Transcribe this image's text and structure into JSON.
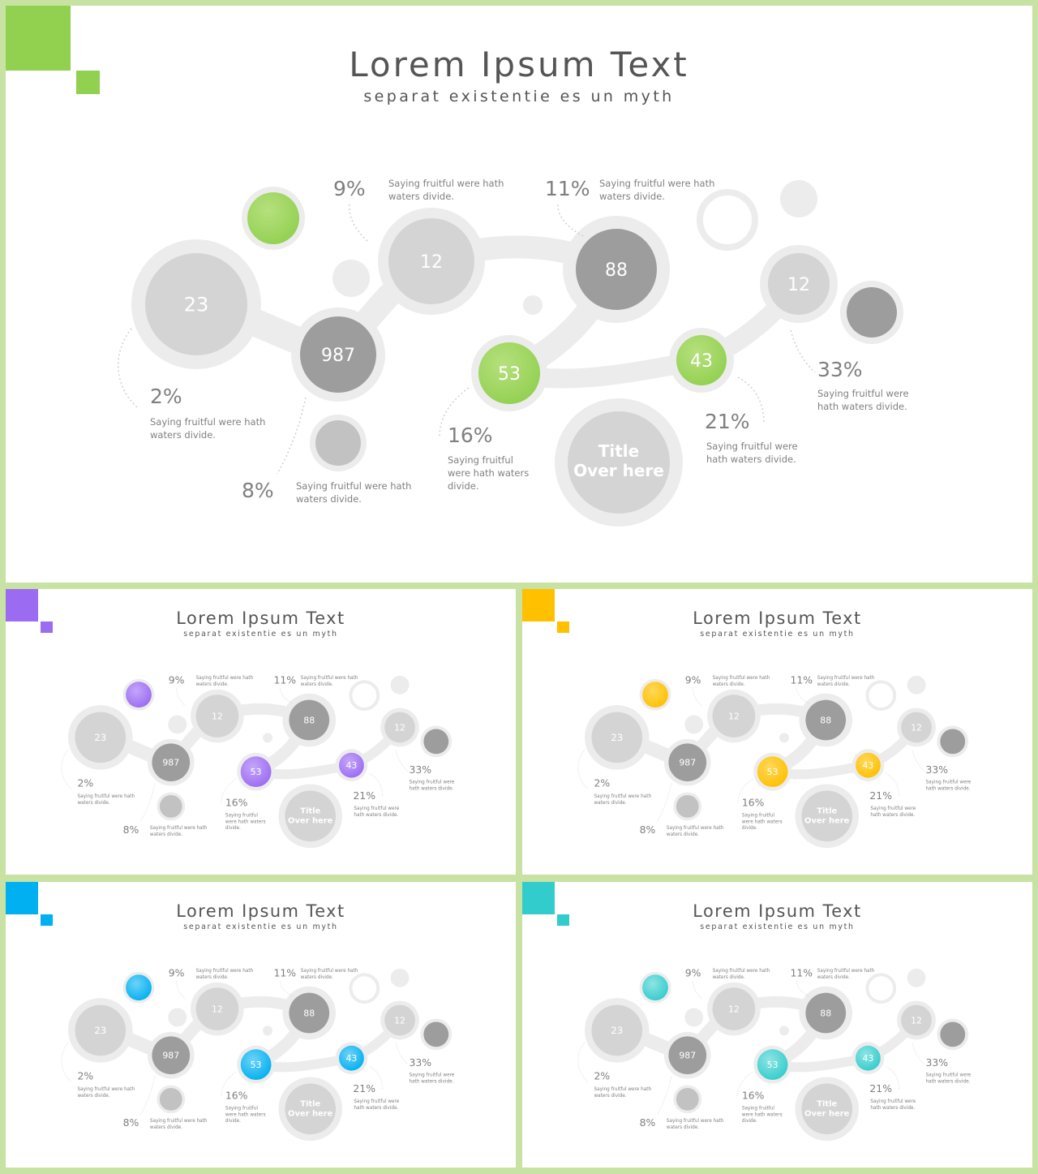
{
  "slides": [
    {
      "id": "main",
      "accent": "#92d050",
      "accent_light": "#b6e07e"
    },
    {
      "id": "purple",
      "accent": "#9b6bf2",
      "accent_light": "#c4a6f8"
    },
    {
      "id": "yellow",
      "accent": "#ffc000",
      "accent_light": "#ffd85a"
    },
    {
      "id": "blue",
      "accent": "#00b0f0",
      "accent_light": "#6dd2f7"
    },
    {
      "id": "teal",
      "accent": "#33cccc",
      "accent_light": "#8fe3e3"
    }
  ],
  "title": "Lorem Ipsum Text",
  "subtitle": "separat existentie es un myth",
  "nodes": {
    "big": "23",
    "n987": "987",
    "n12a": "12",
    "n88": "88",
    "n53": "53",
    "n43": "43",
    "n12b": "12",
    "center_line1": "Title",
    "center_line2": "Over here"
  },
  "callouts": {
    "p9": {
      "pct": "9%",
      "line1": "Saying fruitful were hath",
      "line2": "waters divide."
    },
    "p11": {
      "pct": "11%",
      "line1": "Saying fruitful were hath",
      "line2": "waters divide."
    },
    "p2": {
      "pct": "2%",
      "line1": "Saying fruitful were hath",
      "line2": "waters divide."
    },
    "p8": {
      "pct": "8%",
      "line1": "Saying fruitful were hath",
      "line2": "waters divide."
    },
    "p16": {
      "pct": "16%",
      "line1": "Saying fruitful",
      "line2": "were hath waters",
      "line3": "divide."
    },
    "p21": {
      "pct": "21%",
      "line1": "Saying fruitful were",
      "line2": "hath waters divide."
    },
    "p33": {
      "pct": "33%",
      "line1": "Saying fruitful were",
      "line2": "hath waters divide."
    }
  },
  "palette": {
    "outer_ring": "#ececec",
    "light_node": "#d4d4d4",
    "dark_node": "#9d9d9d",
    "text_dark": "#555555",
    "text_pct": "#7f7f7f",
    "text_small": "#808080",
    "frame": "#c8e2a4"
  }
}
